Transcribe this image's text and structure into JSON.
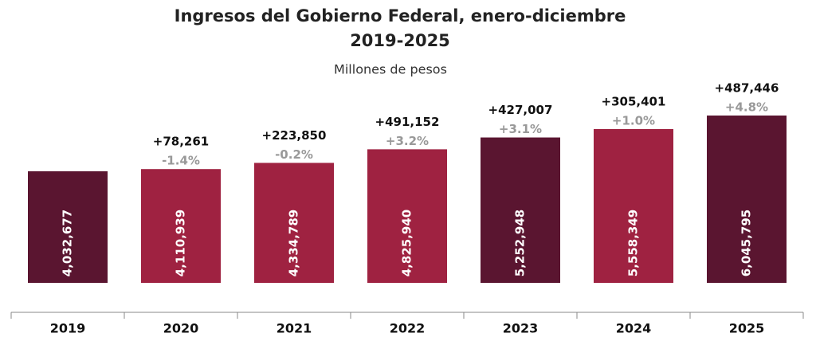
{
  "chart_data": {
    "type": "bar",
    "title": "Ingresos del Gobierno Federal, enero-diciembre",
    "subtitle": "2019-2025",
    "units_label": "Millones de pesos",
    "categories": [
      "2019",
      "2020",
      "2021",
      "2022",
      "2023",
      "2024",
      "2025"
    ],
    "values": [
      4032677,
      4110939,
      4334789,
      4825940,
      5252948,
      5558349,
      6045795
    ],
    "value_labels": [
      "4,032,677",
      "4,110,939",
      "4,334,789",
      "4,825,940",
      "5,252,948",
      "5,558,349",
      "6,045,795"
    ],
    "colors": [
      "#5a1530",
      "#9f2241",
      "#9f2241",
      "#9f2241",
      "#5a1530",
      "#9f2241",
      "#5a1530"
    ],
    "change_labels": [
      null,
      "+78,261",
      "+223,850",
      "+491,152",
      "+427,007",
      "+305,401",
      "+487,446"
    ],
    "pct_change_labels": [
      null,
      "-1.4%",
      "-0.2%",
      "+3.2%",
      "+3.1%",
      "+1.0%",
      "+4.8%"
    ]
  }
}
